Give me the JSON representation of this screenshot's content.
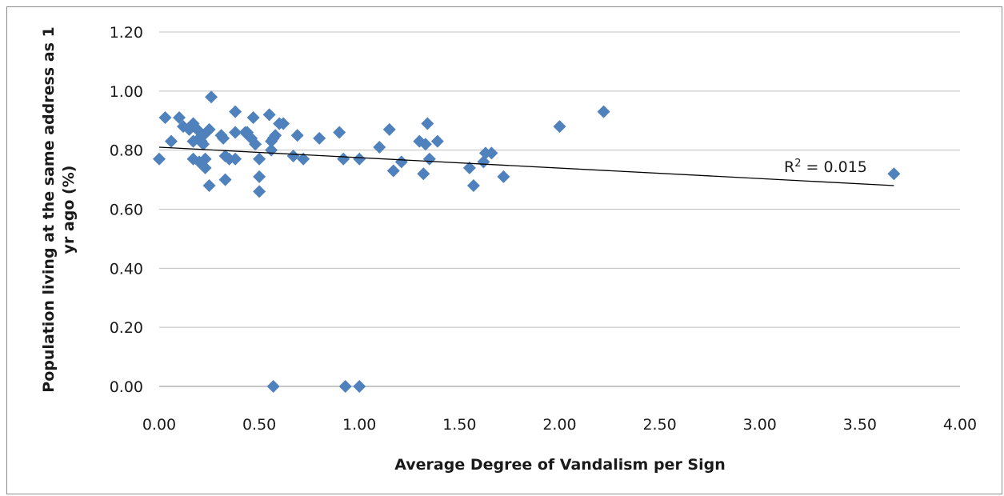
{
  "chart_data": {
    "type": "scatter",
    "title": "",
    "xlabel": "Average Degree of Vandalism per Sign",
    "ylabel_lines": [
      "Population living at the same address as 1",
      "yr ago (%)"
    ],
    "xlim": [
      0,
      4
    ],
    "ylim": [
      0,
      1.2
    ],
    "x_ticks": [
      "0.00",
      "0.50",
      "1.00",
      "1.50",
      "2.00",
      "2.50",
      "3.00",
      "3.50",
      "4.00"
    ],
    "y_ticks": [
      "0.00",
      "0.20",
      "0.40",
      "0.60",
      "0.80",
      "1.00",
      "1.20"
    ],
    "grid": "horizontal",
    "marker_color": "#4f81bd",
    "trendline": {
      "x": [
        0,
        3.67
      ],
      "y": [
        0.81,
        0.68
      ],
      "color": "#000000"
    },
    "r2_label": {
      "prefix": "R",
      "sup": "2",
      "suffix": " = 0.015"
    },
    "points": [
      [
        0.0,
        0.77
      ],
      [
        0.03,
        0.91
      ],
      [
        0.06,
        0.83
      ],
      [
        0.1,
        0.91
      ],
      [
        0.12,
        0.88
      ],
      [
        0.15,
        0.87
      ],
      [
        0.17,
        0.89
      ],
      [
        0.17,
        0.83
      ],
      [
        0.17,
        0.77
      ],
      [
        0.19,
        0.87
      ],
      [
        0.2,
        0.84
      ],
      [
        0.2,
        0.76
      ],
      [
        0.21,
        0.83
      ],
      [
        0.22,
        0.85
      ],
      [
        0.22,
        0.82
      ],
      [
        0.23,
        0.77
      ],
      [
        0.23,
        0.74
      ],
      [
        0.25,
        0.87
      ],
      [
        0.25,
        0.68
      ],
      [
        0.26,
        0.98
      ],
      [
        0.31,
        0.85
      ],
      [
        0.32,
        0.84
      ],
      [
        0.33,
        0.78
      ],
      [
        0.33,
        0.7
      ],
      [
        0.35,
        0.77
      ],
      [
        0.38,
        0.86
      ],
      [
        0.38,
        0.77
      ],
      [
        0.38,
        0.93
      ],
      [
        0.43,
        0.86
      ],
      [
        0.44,
        0.86
      ],
      [
        0.46,
        0.84
      ],
      [
        0.47,
        0.91
      ],
      [
        0.48,
        0.82
      ],
      [
        0.5,
        0.77
      ],
      [
        0.5,
        0.71
      ],
      [
        0.5,
        0.66
      ],
      [
        0.55,
        0.92
      ],
      [
        0.56,
        0.83
      ],
      [
        0.56,
        0.8
      ],
      [
        0.57,
        0.84
      ],
      [
        0.58,
        0.85
      ],
      [
        0.6,
        0.89
      ],
      [
        0.62,
        0.89
      ],
      [
        0.67,
        0.78
      ],
      [
        0.69,
        0.85
      ],
      [
        0.72,
        0.77
      ],
      [
        0.8,
        0.84
      ],
      [
        0.9,
        0.86
      ],
      [
        0.92,
        0.77
      ],
      [
        1.0,
        0.77
      ],
      [
        1.1,
        0.81
      ],
      [
        1.15,
        0.87
      ],
      [
        1.17,
        0.73
      ],
      [
        1.21,
        0.76
      ],
      [
        1.3,
        0.83
      ],
      [
        1.32,
        0.72
      ],
      [
        1.33,
        0.82
      ],
      [
        1.34,
        0.89
      ],
      [
        1.35,
        0.77
      ],
      [
        1.39,
        0.83
      ],
      [
        1.55,
        0.74
      ],
      [
        1.57,
        0.68
      ],
      [
        1.62,
        0.76
      ],
      [
        1.63,
        0.79
      ],
      [
        1.66,
        0.79
      ],
      [
        1.72,
        0.71
      ],
      [
        2.0,
        0.88
      ],
      [
        2.22,
        0.93
      ],
      [
        3.67,
        0.72
      ],
      [
        0.57,
        0.0
      ],
      [
        0.93,
        0.0
      ],
      [
        1.0,
        0.0
      ]
    ]
  }
}
